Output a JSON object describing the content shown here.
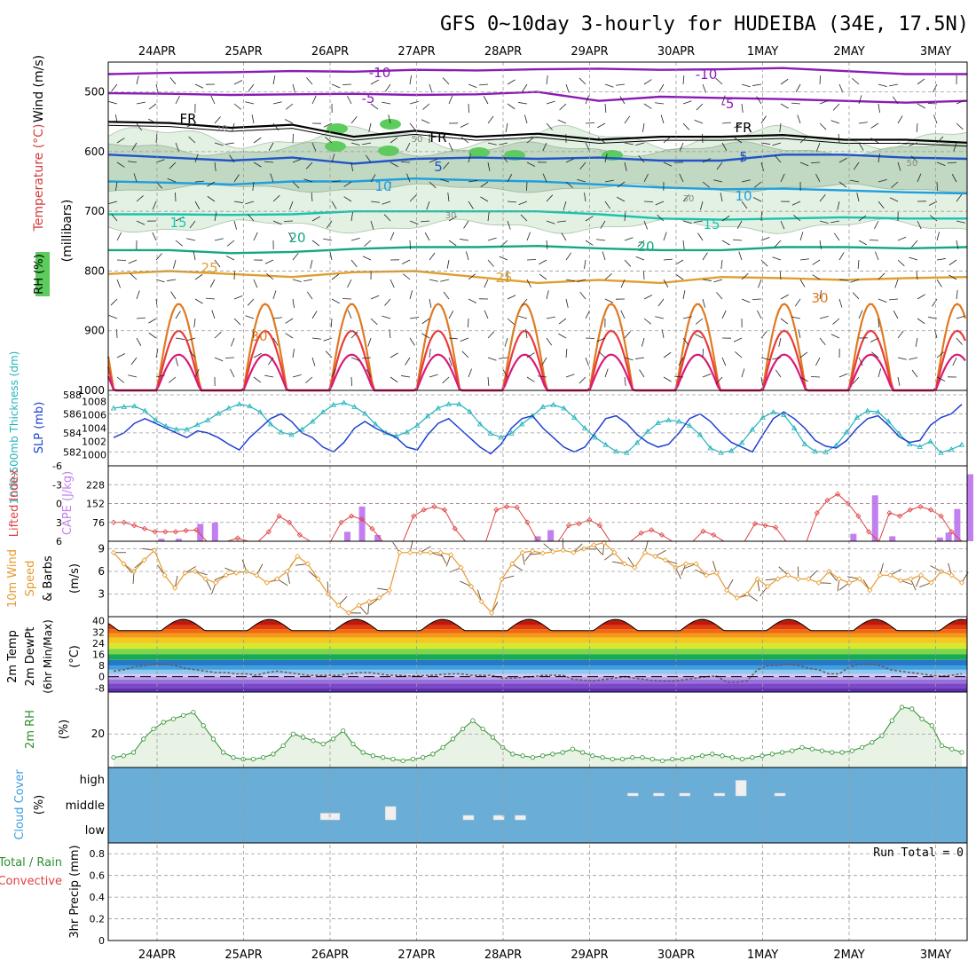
{
  "title": "GFS 0~10day 3-hourly for HUDEIBA (34E, 17.5N)",
  "date_labels": [
    "24APR",
    "25APR",
    "26APR",
    "27APR",
    "28APR",
    "29APR",
    "30APR",
    "1MAY",
    "2MAY",
    "3MAY"
  ],
  "colors": {
    "rh_fill": "#e3f1e3",
    "rh_fill_dark": "#b9d2bb",
    "rh_high": "#5ccc5c",
    "cloud_bg": "#6aaed8",
    "cape_bar": "#c37ff0",
    "lifted_line": "#e04040",
    "thickness_line": "#1f3fd1",
    "slp_line": "#1eb4bd",
    "wind_speed": "#e79a2e",
    "rh2m": "#2d8f2d"
  },
  "chart_data": [
    {
      "type": "line",
      "panel": "upper-air",
      "ylabel_parts": [
        "RH (%)",
        "Temperature (°C)",
        "Wind (m/s)"
      ],
      "yunit": "(millibars)",
      "y_ticks": [
        500,
        600,
        700,
        800,
        900,
        1000
      ],
      "ylim": [
        1000,
        450
      ],
      "contour_labels": [
        "-10",
        "-10",
        "-5",
        "-5",
        "FR",
        "FR",
        "FR",
        "5",
        "5",
        "10",
        "10",
        "15",
        "15",
        "20",
        "20",
        "25",
        "25",
        "30",
        "30",
        "10",
        "30",
        "50",
        "30",
        "50"
      ],
      "levels": [
        {
          "label": "-10",
          "color": "#8b1bb5",
          "p": [
            470,
            468,
            467,
            465,
            466,
            463,
            464,
            462,
            461,
            463,
            462,
            460,
            465,
            470,
            470
          ]
        },
        {
          "label": "-5",
          "color": "#8b1bb5",
          "p": [
            502,
            503,
            505,
            504,
            503,
            505,
            504,
            500,
            515,
            508,
            510,
            512,
            515,
            518,
            515
          ]
        },
        {
          "label": "FR",
          "color": "#000000",
          "p": [
            550,
            552,
            560,
            555,
            575,
            565,
            575,
            570,
            580,
            575,
            575,
            572,
            580,
            580,
            585
          ]
        },
        {
          "label": "5",
          "color": "#1f55c8",
          "p": [
            605,
            610,
            615,
            610,
            620,
            612,
            610,
            612,
            610,
            615,
            615,
            605,
            605,
            610,
            612
          ]
        },
        {
          "label": "10",
          "color": "#1e9fe0",
          "p": [
            650,
            652,
            655,
            650,
            650,
            645,
            648,
            650,
            655,
            660,
            663,
            662,
            665,
            668,
            670
          ]
        },
        {
          "label": "15",
          "color": "#18c4b0",
          "p": [
            705,
            705,
            706,
            705,
            700,
            700,
            700,
            700,
            705,
            712,
            714,
            712,
            710,
            712,
            712
          ]
        },
        {
          "label": "20",
          "color": "#14a880",
          "p": [
            765,
            765,
            770,
            768,
            763,
            760,
            760,
            758,
            762,
            765,
            765,
            760,
            760,
            762,
            760
          ]
        },
        {
          "label": "25",
          "color": "#e0a030",
          "p": [
            805,
            800,
            805,
            810,
            802,
            800,
            810,
            820,
            815,
            820,
            810,
            812,
            815,
            812,
            810
          ]
        }
      ],
      "wave_series": [
        {
          "label": "30",
          "color": "#e07a1e",
          "base": 1000,
          "top": 855
        },
        {
          "label": "35",
          "color": "#e83c3c",
          "base": 1000,
          "top": 900
        },
        {
          "label": "40",
          "color": "#d81a7a",
          "base": 1000,
          "top": 940
        }
      ]
    },
    {
      "type": "line",
      "panel": "thickness-slp",
      "ylabel_left": "1000-500mb Thickness (dm)",
      "ylabel_right": "SLP (mb)",
      "left_ticks": [
        582,
        584,
        586,
        588
      ],
      "right_ticks": [
        1000,
        1002,
        1004,
        1006,
        1008
      ],
      "ylim_left": [
        581,
        588
      ],
      "ylim_right": [
        999,
        1009
      ],
      "thickness": [
        583.5,
        584.0,
        585.0,
        585.5,
        585.0,
        584.5,
        584.0,
        583.5,
        584.2,
        584.0,
        583.5,
        582.8,
        582.2,
        583.5,
        584.5,
        585.5,
        586.0,
        585.2,
        584.0,
        583.5,
        582.5,
        582.0,
        583.0,
        584.5,
        585.2,
        584.5,
        584.0,
        583.5,
        582.5,
        582.2,
        583.8,
        585.0,
        585.5,
        584.5,
        583.5,
        582.5,
        581.8,
        582.8,
        584.5,
        585.5,
        585.8,
        584.5,
        583.5,
        582.5,
        582.0,
        582.5,
        584.0,
        585.5,
        585.8,
        585.0,
        583.8,
        583.0,
        582.5,
        582.8,
        584.0,
        585.5,
        586.0,
        585.2,
        584.0,
        583.0,
        582.5,
        582.0,
        583.8,
        585.5,
        586.2,
        585.5,
        584.5,
        583.2,
        582.6,
        582.4,
        583.2,
        584.5,
        585.5,
        585.8,
        584.8,
        583.6,
        583.0,
        583.2,
        584.8,
        585.6,
        586.0,
        587.0
      ],
      "slp": [
        1007,
        1007.2,
        1007.3,
        1006.6,
        1005.2,
        1004.3,
        1003.8,
        1003.8,
        1004.5,
        1005.2,
        1006.2,
        1007.0,
        1007.6,
        1007.3,
        1006.4,
        1004.6,
        1003.4,
        1003.0,
        1003.8,
        1005.0,
        1006.4,
        1007.5,
        1007.8,
        1007.2,
        1006.2,
        1004.6,
        1003.3,
        1002.8,
        1003.4,
        1004.4,
        1005.8,
        1007.0,
        1007.6,
        1007.6,
        1006.5,
        1004.6,
        1003.2,
        1002.6,
        1003.2,
        1004.6,
        1005.8,
        1007.2,
        1007.5,
        1007.0,
        1005.6,
        1004.0,
        1002.6,
        1001.5,
        1000.5,
        1000.3,
        1001.8,
        1003.5,
        1004.8,
        1005.2,
        1005.0,
        1004.4,
        1003.0,
        1001.0,
        1000.3,
        1000.6,
        1001.8,
        1003.8,
        1005.6,
        1006.4,
        1006.0,
        1004.0,
        1001.6,
        1000.5,
        1000.4,
        1001.4,
        1003.4,
        1005.6,
        1006.6,
        1006.4,
        1005.0,
        1003.2,
        1001.6,
        1001.2,
        1002.0,
        1000.3,
        1000.8,
        1001.5
      ]
    },
    {
      "type": "bar",
      "panel": "cape-lifted-index",
      "ylabel_left": "Lifted Index",
      "ylabel_right": "CAPE (J/kg)",
      "li_ticks": [
        "-6",
        "-3",
        "0",
        "3",
        "6"
      ],
      "cape_ticks": [
        "228",
        "152",
        "76"
      ],
      "li_ylim": [
        6,
        -6
      ],
      "cape_ylim": [
        0,
        304
      ],
      "lifted_index": [
        3,
        3,
        3.5,
        4,
        4.5,
        4.5,
        4.5,
        4.3,
        4.2,
        6,
        6,
        6,
        5.5,
        6,
        6,
        4.5,
        2,
        3,
        5,
        6,
        6,
        6,
        3,
        2,
        2.5,
        4,
        6,
        6,
        6,
        2,
        1,
        0.5,
        1,
        4,
        6,
        6,
        6,
        1,
        0.5,
        0.6,
        3,
        6,
        6,
        6,
        3.5,
        3.2,
        2.6,
        3.5,
        6,
        6,
        6,
        4.7,
        4.2,
        5,
        6,
        6,
        6,
        4.4,
        5,
        6,
        6,
        6,
        3.2,
        3.5,
        3.8,
        6,
        6,
        6,
        1.5,
        -0.5,
        -1.5,
        0,
        2,
        4.5,
        6,
        1.5,
        2,
        1,
        0.5,
        1,
        2,
        4.5,
        6
      ],
      "cape": [
        10,
        10,
        70,
        80,
        10,
        0,
        0,
        0,
        0,
        0,
        0,
        0,
        0,
        0,
        0,
        0,
        0,
        0,
        0,
        0,
        0,
        0,
        0,
        0,
        0,
        0,
        0,
        0,
        0,
        0,
        0,
        0,
        0,
        0,
        0,
        0,
        0,
        0,
        0,
        0,
        0,
        0,
        0,
        0,
        0,
        0,
        0,
        0,
        0,
        0,
        0,
        0,
        0,
        0,
        0,
        0,
        0,
        0,
        0,
        0,
        0,
        0,
        0,
        0,
        0,
        0,
        0,
        0,
        0,
        0,
        0,
        0,
        0,
        0,
        0,
        0,
        0,
        0,
        0,
        0,
        0,
        0,
        0
      ],
      "cape_bars": [
        {
          "time": 0.05,
          "value": 10
        },
        {
          "time": 0.25,
          "value": 10
        },
        {
          "time": 0.5,
          "value": 70
        },
        {
          "time": 0.67,
          "value": 75
        },
        {
          "time": 2.2,
          "value": 38
        },
        {
          "time": 2.37,
          "value": 140
        },
        {
          "time": 2.55,
          "value": 25
        },
        {
          "time": 4.4,
          "value": 20
        },
        {
          "time": 4.55,
          "value": 45
        },
        {
          "time": 8.05,
          "value": 30
        },
        {
          "time": 8.3,
          "value": 185
        },
        {
          "time": 8.5,
          "value": 20
        },
        {
          "time": 9.05,
          "value": 15
        },
        {
          "time": 9.15,
          "value": 35
        },
        {
          "time": 9.25,
          "value": 130
        },
        {
          "time": 9.4,
          "value": 270
        },
        {
          "time": 9.55,
          "value": 50
        }
      ]
    },
    {
      "type": "line",
      "panel": "10m-wind",
      "ylabel_parts": [
        "10m Wind",
        "Speed",
        "& Barbs"
      ],
      "yunit": "(m/s)",
      "y_ticks": [
        3,
        6,
        9
      ],
      "ylim": [
        0,
        10
      ],
      "speed": [
        8.5,
        7,
        6,
        7.5,
        8.8,
        5.5,
        3.8,
        5.8,
        6,
        5,
        4.5,
        5.5,
        5.8,
        6,
        5.5,
        4.5,
        5,
        6,
        8,
        7,
        5,
        3,
        1.5,
        0.5,
        1.5,
        2,
        2.5,
        3.5,
        8.5,
        8.5,
        8.5,
        8.5,
        8.5,
        8.2,
        6.5,
        4,
        2,
        0.5,
        5,
        7,
        8.5,
        8.7,
        8.4,
        8.6,
        8.8,
        8.5,
        9,
        9.5,
        9.8,
        8.5,
        7,
        6.5,
        8.5,
        8,
        7.5,
        6.5,
        7,
        7,
        5.5,
        5.8,
        3.5,
        2.5,
        3,
        5,
        4,
        5,
        5.5,
        5,
        5,
        4.5,
        6,
        5,
        4.5,
        5,
        3.5,
        5.5,
        5.5,
        4.8,
        5,
        5.5,
        4.5,
        6,
        5.5,
        4.5
      ]
    },
    {
      "type": "area",
      "panel": "2m-temp",
      "ylabel_parts": [
        "2m Temp",
        "2m DewPt",
        "(6hr Min/Max)"
      ],
      "yunit": "(°C)",
      "y_ticks": [
        -8,
        0,
        8,
        16,
        24,
        32,
        40
      ],
      "ylim": [
        -11,
        43
      ],
      "temp_min": 33,
      "temp_max": 41,
      "dewpt": [
        4,
        5,
        7,
        8,
        9,
        9,
        8,
        6,
        5,
        4,
        3,
        3,
        2,
        2,
        1,
        3,
        4,
        3,
        2,
        1,
        1,
        1,
        1,
        2,
        3,
        3,
        2,
        1,
        1,
        0.5,
        0.8,
        1,
        1.5,
        2,
        2,
        1,
        1,
        1,
        -1,
        -1,
        -0.5,
        0,
        1,
        1,
        1,
        -2,
        -2.5,
        -3,
        -2,
        -1,
        0,
        -1,
        -2,
        -3,
        -3.2,
        -3,
        -2,
        -1,
        0,
        0.5,
        -4,
        -4,
        -3,
        5,
        8,
        8,
        9,
        8,
        6,
        5,
        2,
        2,
        7,
        9,
        9,
        8,
        5,
        4,
        3,
        2,
        1,
        0.5,
        1,
        2
      ]
    },
    {
      "type": "area",
      "panel": "2m-rh",
      "ylabel": "2m RH",
      "yunit": "(%)",
      "y_ticks": [
        20
      ],
      "ylim": [
        0,
        45
      ],
      "rh": [
        6,
        7,
        9,
        17,
        23,
        27,
        29,
        31,
        33,
        25,
        17,
        9,
        6,
        5,
        5,
        6,
        8,
        13,
        20,
        18,
        16,
        14,
        17,
        22,
        14,
        9,
        7,
        6,
        5,
        4,
        5,
        6,
        8,
        12,
        17,
        23,
        28,
        23,
        18,
        12,
        8,
        7,
        6,
        7,
        8,
        9,
        11,
        9,
        7,
        6,
        5,
        5,
        6,
        6,
        5,
        4,
        5,
        5,
        6,
        7,
        8,
        7,
        6,
        5,
        6,
        7,
        8,
        9,
        10,
        12,
        11,
        10,
        9,
        9,
        10,
        12,
        15,
        19,
        28,
        36,
        35,
        29,
        25,
        13,
        11,
        9
      ]
    },
    {
      "type": "bar",
      "panel": "cloud-cover",
      "ylabel": "Cloud Cover",
      "yunit": "(%)",
      "y_labels": [
        "high",
        "middle",
        "low"
      ],
      "blocks": [
        {
          "time": 1.95,
          "level": "middle",
          "height": 0.3
        },
        {
          "time": 2.05,
          "level": "middle",
          "height": 0.3
        },
        {
          "time": 2.7,
          "level": "middle",
          "height": 0.6
        },
        {
          "time": 3.6,
          "level": "middle",
          "height": 0.2
        },
        {
          "time": 3.95,
          "level": "middle",
          "height": 0.2
        },
        {
          "time": 4.2,
          "level": "middle",
          "height": 0.2
        },
        {
          "time": 5.5,
          "level": "high",
          "height": 0.1
        },
        {
          "time": 5.8,
          "level": "high",
          "height": 0.1
        },
        {
          "time": 6.1,
          "level": "high",
          "height": 0.1
        },
        {
          "time": 6.5,
          "level": "high",
          "height": 0.1
        },
        {
          "time": 6.75,
          "level": "high",
          "height": 0.7
        },
        {
          "time": 7.2,
          "level": "high",
          "height": 0.1
        }
      ]
    },
    {
      "type": "bar",
      "panel": "precip",
      "ylabel_parts": [
        "Total / Rain",
        "Convective",
        "3hr Precip (mm)"
      ],
      "y_ticks": [
        "0",
        "0.2",
        "0.4",
        "0.6",
        "0.8"
      ],
      "ylim": [
        0,
        0.9
      ],
      "run_total": "Run Total = 0",
      "values": []
    }
  ]
}
